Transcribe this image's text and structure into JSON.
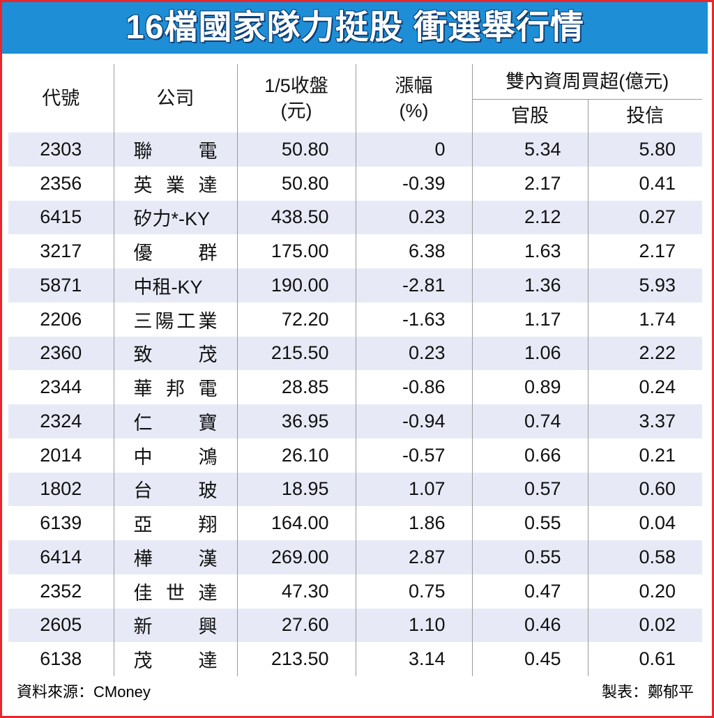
{
  "header": {
    "title": "16檔國家隊力挺股 衝選舉行情"
  },
  "table": {
    "columns": {
      "code": "代號",
      "company": "公司",
      "close": [
        "1/5收盤",
        "(元)"
      ],
      "change": [
        "漲幅",
        "(%)"
      ],
      "group": "雙內資周買超(億元)",
      "gov": "官股",
      "trust": "投信"
    },
    "rows": [
      [
        "2303",
        "聯電",
        "50.80",
        "0",
        "5.34",
        "5.80"
      ],
      [
        "2356",
        "英業達",
        "50.80",
        "-0.39",
        "2.17",
        "0.41"
      ],
      [
        "6415",
        "矽力*-KY",
        "438.50",
        "0.23",
        "2.12",
        "0.27"
      ],
      [
        "3217",
        "優群",
        "175.00",
        "6.38",
        "1.63",
        "2.17"
      ],
      [
        "5871",
        "中租-KY",
        "190.00",
        "-2.81",
        "1.36",
        "5.93"
      ],
      [
        "2206",
        "三陽工業",
        "72.20",
        "-1.63",
        "1.17",
        "1.74"
      ],
      [
        "2360",
        "致茂",
        "215.50",
        "0.23",
        "1.06",
        "2.22"
      ],
      [
        "2344",
        "華邦電",
        "28.85",
        "-0.86",
        "0.89",
        "0.24"
      ],
      [
        "2324",
        "仁寶",
        "36.95",
        "-0.94",
        "0.74",
        "3.37"
      ],
      [
        "2014",
        "中鴻",
        "26.10",
        "-0.57",
        "0.66",
        "0.21"
      ],
      [
        "1802",
        "台玻",
        "18.95",
        "1.07",
        "0.57",
        "0.60"
      ],
      [
        "6139",
        "亞翔",
        "164.00",
        "1.86",
        "0.55",
        "0.04"
      ],
      [
        "6414",
        "樺漢",
        "269.00",
        "2.87",
        "0.55",
        "0.58"
      ],
      [
        "2352",
        "佳世達",
        "47.30",
        "0.75",
        "0.47",
        "0.20"
      ],
      [
        "2605",
        "新興",
        "27.60",
        "1.10",
        "0.46",
        "0.02"
      ],
      [
        "6138",
        "茂達",
        "213.50",
        "3.14",
        "0.45",
        "0.61"
      ]
    ]
  },
  "footer": {
    "source": "資料來源：CMoney",
    "author": "製表：鄭郁平"
  }
}
